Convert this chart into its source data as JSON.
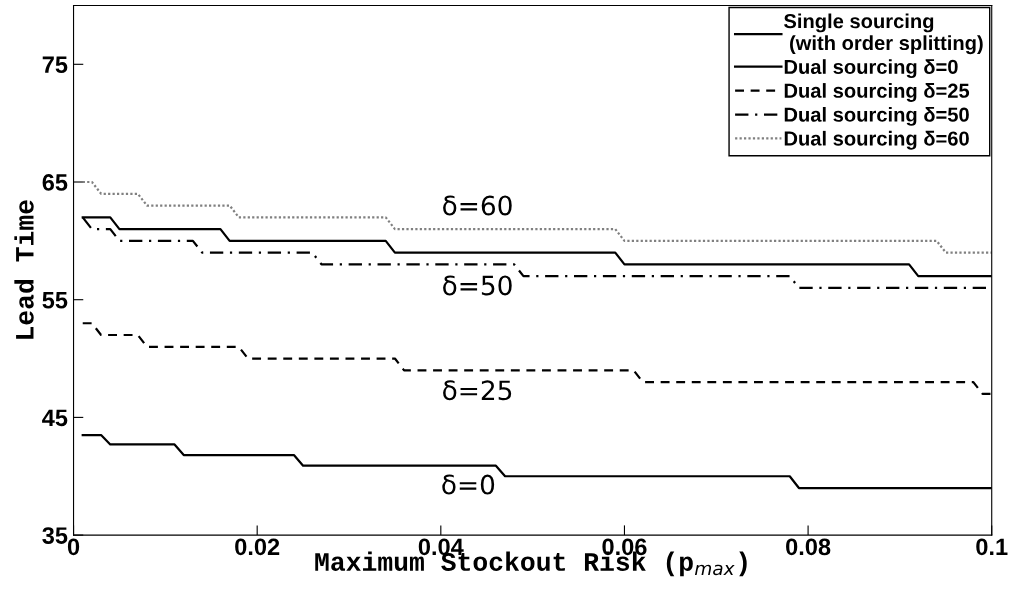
{
  "chart_data": {
    "type": "line",
    "xlabel": "Maximum Stockout Risk (p$_{max}$)",
    "ylabel": "Lead Time",
    "xlim": [
      0,
      0.1
    ],
    "xticks": [
      0,
      0.02,
      0.04,
      0.06,
      0.08,
      0.1
    ],
    "ylim": [
      35,
      80
    ],
    "yticks": [
      35,
      45,
      55,
      65,
      75
    ],
    "grid": false,
    "legend": "top right",
    "marker": "none",
    "series": [
      {
        "name": "Single sourcing\n (with order splitting)",
        "color": "#000000",
        "line_style": "solid",
        "x": [
          0.001,
          0.004,
          0.005,
          0.016,
          0.017,
          0.034,
          0.035,
          0.059,
          0.06,
          0.091,
          0.092,
          0.1
        ],
        "values": [
          62,
          62,
          61,
          61,
          60,
          60,
          59,
          59,
          58,
          58,
          57,
          57
        ]
      },
      {
        "name": "Dual sourcing δ=0",
        "color": "#000000",
        "line_style": "solid",
        "x": [
          0.001,
          0.003,
          0.004,
          0.011,
          0.012,
          0.024,
          0.025,
          0.046,
          0.047,
          0.078,
          0.079,
          0.1
        ],
        "values": [
          43.5,
          43.5,
          42.7,
          42.7,
          41.8,
          41.8,
          40.9,
          40.9,
          40,
          40,
          39,
          39
        ]
      },
      {
        "name": "Dual sourcing δ=25",
        "color": "#000000",
        "line_style": "dashed",
        "x": [
          0.001,
          0.002,
          0.003,
          0.007,
          0.008,
          0.018,
          0.019,
          0.035,
          0.036,
          0.061,
          0.062,
          0.098,
          0.099,
          0.1
        ],
        "values": [
          53,
          53,
          52,
          52,
          51,
          51,
          50,
          50,
          49,
          49,
          48,
          48,
          47,
          47
        ]
      },
      {
        "name": "Dual sourcing δ=50",
        "color": "#000000",
        "line_style": "dashdot",
        "x": [
          0.001,
          0.002,
          0.004,
          0.005,
          0.013,
          0.014,
          0.026,
          0.027,
          0.048,
          0.049,
          0.078,
          0.079,
          0.1
        ],
        "values": [
          62,
          61,
          61,
          60,
          60,
          59,
          59,
          58,
          58,
          57,
          57,
          56,
          56
        ]
      },
      {
        "name": "Dual sourcing δ=60",
        "color": "#808080",
        "line_style": "dotted",
        "x": [
          0.001,
          0.002,
          0.003,
          0.007,
          0.008,
          0.017,
          0.018,
          0.034,
          0.035,
          0.059,
          0.06,
          0.094,
          0.095,
          0.1
        ],
        "values": [
          65,
          65,
          64,
          64,
          63,
          63,
          62,
          62,
          61,
          61,
          60,
          60,
          59,
          59
        ]
      }
    ],
    "annotations": [
      "δ=60",
      "δ=50",
      "δ=25",
      "δ=0"
    ]
  }
}
